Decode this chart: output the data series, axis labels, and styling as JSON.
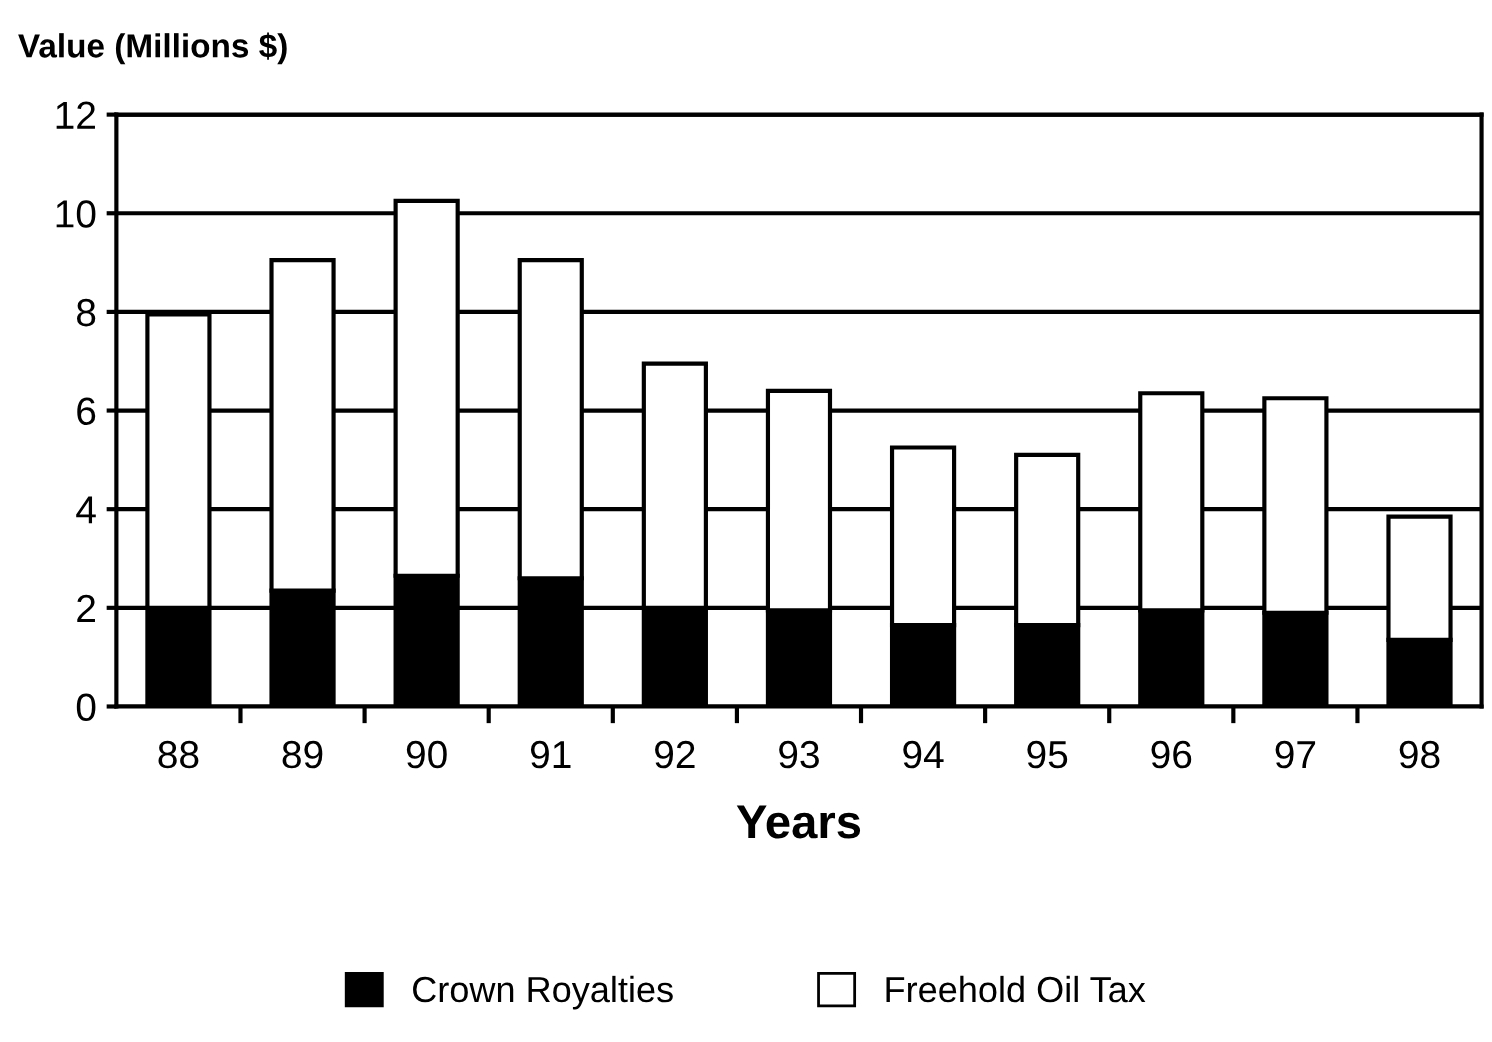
{
  "chart_data": {
    "type": "bar",
    "stacked": true,
    "ylabel": "Value (Millions $)",
    "xlabel": "Years",
    "categories": [
      "88",
      "89",
      "90",
      "91",
      "92",
      "93",
      "94",
      "95",
      "96",
      "97",
      "98"
    ],
    "series": [
      {
        "name": "Crown Royalties",
        "color": "#000000",
        "values": [
          2.0,
          2.35,
          2.65,
          2.6,
          2.0,
          1.95,
          1.65,
          1.65,
          1.95,
          1.9,
          1.35
        ]
      },
      {
        "name": "Freehold Oil Tax",
        "color": "#ffffff",
        "values": [
          5.95,
          6.7,
          7.6,
          6.45,
          4.95,
          4.45,
          3.6,
          3.45,
          4.4,
          4.35,
          2.5
        ]
      }
    ],
    "ylim": [
      0,
      12
    ],
    "yticks": [
      0,
      2,
      4,
      6,
      8,
      10,
      12
    ],
    "grid": "y",
    "legend": "bottom"
  }
}
